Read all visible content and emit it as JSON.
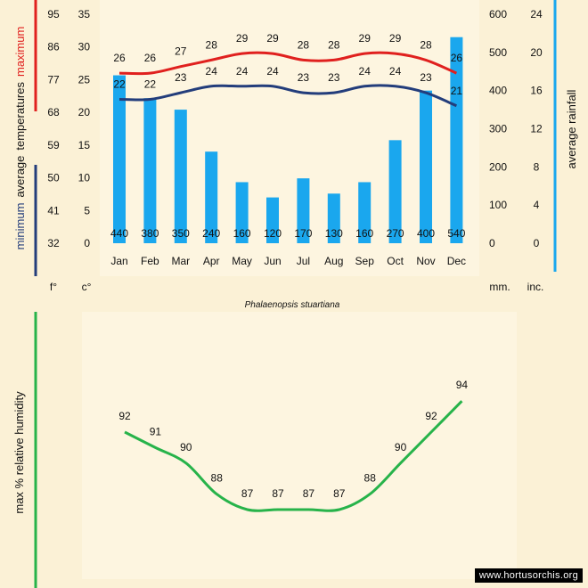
{
  "colors": {
    "max_line": "#e0201e",
    "min_line": "#233d7b",
    "rain_bar": "#1aa7ee",
    "humidity_line": "#27b34a",
    "left_bar_top": "#e0201e",
    "left_bar_bottom": "#233d7b",
    "right_bar": "#1aa7ee",
    "humidity_bar": "#27b34a",
    "panel_bg": "#fdf5e0",
    "page_bg": "#fbf1d6"
  },
  "chart_data": [
    {
      "type": "bar+line",
      "title": "Phalaenopsis stuartiana",
      "categories": [
        "Jan",
        "Feb",
        "Mar",
        "Apr",
        "May",
        "Jun",
        "Jul",
        "Aug",
        "Sep",
        "Oct",
        "Nov",
        "Dec"
      ],
      "series": [
        {
          "name": "average rainfall",
          "kind": "bar",
          "unit": "mm.",
          "values": [
            440,
            380,
            350,
            240,
            160,
            120,
            170,
            130,
            160,
            270,
            400,
            540
          ]
        },
        {
          "name": "maximum",
          "kind": "line",
          "unit": "c°",
          "values": [
            26,
            26,
            27,
            28,
            29,
            29,
            28,
            28,
            29,
            29,
            28,
            26
          ]
        },
        {
          "name": "minimum",
          "kind": "line",
          "unit": "c°",
          "values": [
            22,
            22,
            23,
            24,
            24,
            24,
            23,
            23,
            24,
            24,
            23,
            21
          ]
        }
      ],
      "left_axis_title": [
        "minimum",
        "average",
        "temperatures",
        "maximum"
      ],
      "right_axis_title": "average rainfall",
      "celsius_axis": {
        "label": "c°",
        "ylim": [
          0,
          35
        ],
        "ticks": [
          "35",
          "30",
          "25",
          "20",
          "15",
          "10",
          "5",
          "0"
        ]
      },
      "fahrenheit_axis": {
        "label": "f°",
        "ticks": [
          "95",
          "86",
          "77",
          "68",
          "59",
          "50",
          "41",
          "32"
        ]
      },
      "mm_axis": {
        "label": "mm.",
        "ylim": [
          0,
          600
        ],
        "ticks": [
          "600",
          "500",
          "400",
          "300",
          "200",
          "100",
          "0"
        ]
      },
      "inch_axis": {
        "label": "inc.",
        "ticks": [
          "24",
          "20",
          "16",
          "12",
          "8",
          "4",
          "0"
        ]
      }
    },
    {
      "type": "line",
      "categories": [
        "Jan",
        "Feb",
        "Mar",
        "Apr",
        "May",
        "Jun",
        "Jul",
        "Aug",
        "Sep",
        "Oct",
        "Nov",
        "Dec"
      ],
      "series": [
        {
          "name": "max % relative humidity",
          "values": [
            92,
            91,
            90,
            88,
            87,
            87,
            87,
            87,
            88,
            90,
            92,
            94
          ]
        }
      ],
      "ylabel": "max %  relative humidity"
    }
  ],
  "watermark": "www.hortusorchis.org"
}
